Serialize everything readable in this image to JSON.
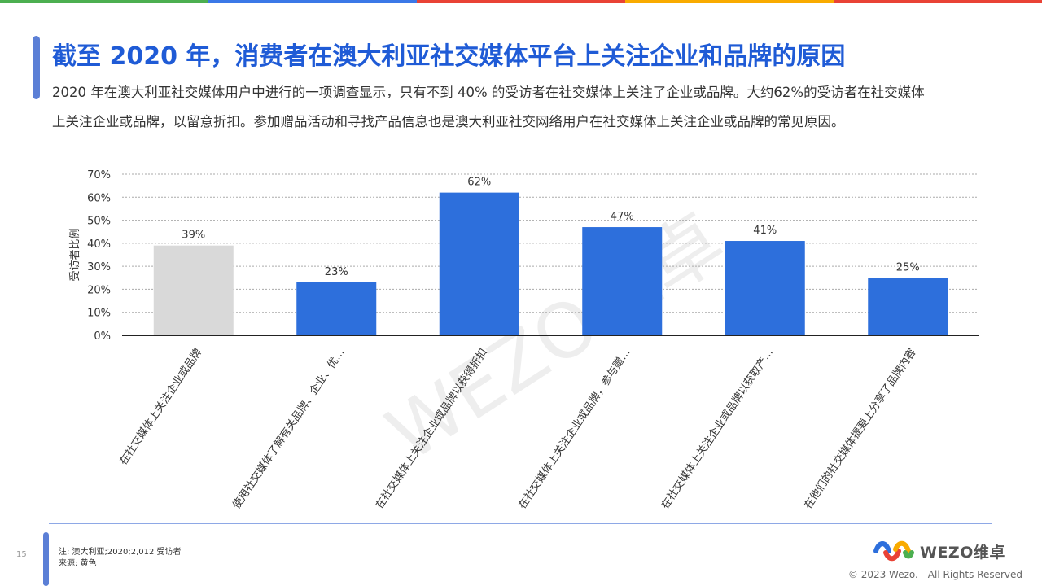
{
  "colors": {
    "top_bar": [
      "#4caf50",
      "#3b78e7",
      "#e94235",
      "#f9ab00",
      "#e94235"
    ],
    "title": "#1f5bd6",
    "bar_highlight": "#2d6fdc",
    "bar_muted": "#d9d9d9",
    "watermark": "#eeeeee"
  },
  "slide": {
    "title": "截至 2020 年，消费者在澳大利亚社交媒体平台上关注企业和品牌的原因",
    "description": "2020 年在澳大利亚社交媒体用户中进行的一项调查显示，只有不到 40% 的受访者在社交媒体上关注了企业或品牌。大约62%的受访者在社交媒体上关注企业或品牌，以留意折扣。参加赠品活动和寻找产品信息也是澳大利亚社交网络用户在社交媒体上关注企业或品牌的常见原因。",
    "page_number": "15",
    "note": "注:  澳大利亚;2020;2,012 受访者",
    "source": "来源:  黄色",
    "logo_text": "WEZO维卓",
    "copyright": "© 2023 Wezo. - All Rights Reserved",
    "watermark": "WEZO维卓"
  },
  "chart_data": {
    "type": "bar",
    "categories": [
      "在社交媒体上关注企业或品牌",
      "使用社交媒体了解有关品牌、企业、优…",
      "在社交媒体上关注企业或品牌以获得折扣",
      "在社交媒体上关注企业或品牌，参与赠…",
      "在社交媒体上关注企业或品牌以获取产…",
      "在他们的社交媒体提要上分享了品牌内容"
    ],
    "values": [
      39,
      23,
      62,
      47,
      41,
      25
    ],
    "data_labels": [
      "39%",
      "23%",
      "62%",
      "47%",
      "41%",
      "25%"
    ],
    "highlight": [
      false,
      true,
      true,
      true,
      true,
      true
    ],
    "title": "",
    "xlabel": "",
    "ylabel": "受访者比例",
    "ylim": [
      0,
      70
    ],
    "yticks": [
      0,
      10,
      20,
      30,
      40,
      50,
      60,
      70
    ],
    "ytick_labels": [
      "0%",
      "10%",
      "20%",
      "30%",
      "40%",
      "50%",
      "60%",
      "70%"
    ],
    "grid": true
  }
}
